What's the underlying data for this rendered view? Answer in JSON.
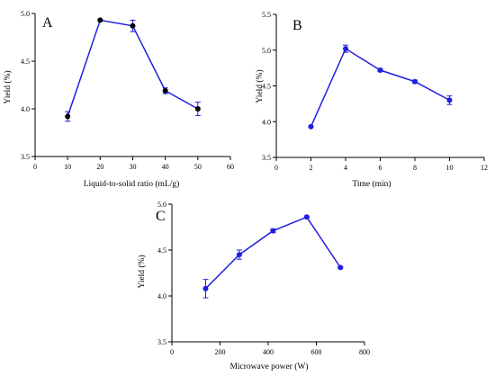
{
  "chart_data": [
    {
      "type": "line",
      "panel": "A",
      "xlabel": "Liquid-to-solid ratio    (mL/g)",
      "ylabel": "Yield  (%)",
      "xlim": [
        0,
        60
      ],
      "ylim": [
        3.5,
        5.0
      ],
      "xticks": [
        0,
        10,
        20,
        30,
        40,
        50,
        60
      ],
      "yticks": [
        3.5,
        4.0,
        4.5,
        5.0
      ],
      "xtick_labels": [
        "0",
        "10",
        "20",
        "30",
        "40",
        "50",
        "60"
      ],
      "ytick_labels": [
        "3.5",
        "4.0",
        "4.5",
        "5.0"
      ],
      "marker_color": "#000000",
      "line_color": "#1f1fe0",
      "x": [
        10,
        20,
        30,
        40,
        50
      ],
      "y": [
        3.92,
        4.93,
        4.87,
        4.19,
        4.0
      ],
      "error": [
        0.05,
        0.01,
        0.06,
        0.03,
        0.07
      ]
    },
    {
      "type": "line",
      "panel": "B",
      "xlabel": "Time  (min)",
      "ylabel": "Yield   (%)",
      "xlim": [
        0,
        12
      ],
      "ylim": [
        3.5,
        5.5
      ],
      "xticks": [
        0,
        2,
        4,
        6,
        8,
        10,
        12
      ],
      "yticks": [
        3.5,
        4.0,
        4.5,
        5.0,
        5.5
      ],
      "xtick_labels": [
        "0",
        "2",
        "4",
        "6",
        "8",
        "10",
        "12"
      ],
      "ytick_labels": [
        "3.5",
        "4.0",
        "4.5",
        "5.0",
        "5.5"
      ],
      "marker_color": "#1f1fe0",
      "line_color": "#1f1fe0",
      "x": [
        2,
        4,
        6,
        8,
        10
      ],
      "y": [
        3.93,
        5.02,
        4.72,
        4.56,
        4.3
      ],
      "error": [
        0.01,
        0.05,
        0.02,
        0.02,
        0.06
      ]
    },
    {
      "type": "line",
      "panel": "C",
      "xlabel": "Microwave power   (W)",
      "ylabel": "Yield   (%)",
      "xlim": [
        0,
        800
      ],
      "ylim": [
        3.5,
        5.0
      ],
      "xticks": [
        0,
        200,
        400,
        600,
        800
      ],
      "yticks": [
        3.5,
        4.0,
        4.5,
        5.0
      ],
      "xtick_labels": [
        "0",
        "200",
        "400",
        "600",
        "800"
      ],
      "ytick_labels": [
        "3.5",
        "4.0",
        "4.5",
        "5.0"
      ],
      "marker_color": "#1f1fe0",
      "line_color": "#1f1fe0",
      "x": [
        140,
        280,
        420,
        560,
        700
      ],
      "y": [
        4.08,
        4.45,
        4.71,
        4.86,
        4.31
      ],
      "error": [
        0.1,
        0.05,
        0.02,
        0.01,
        0.01
      ]
    }
  ]
}
